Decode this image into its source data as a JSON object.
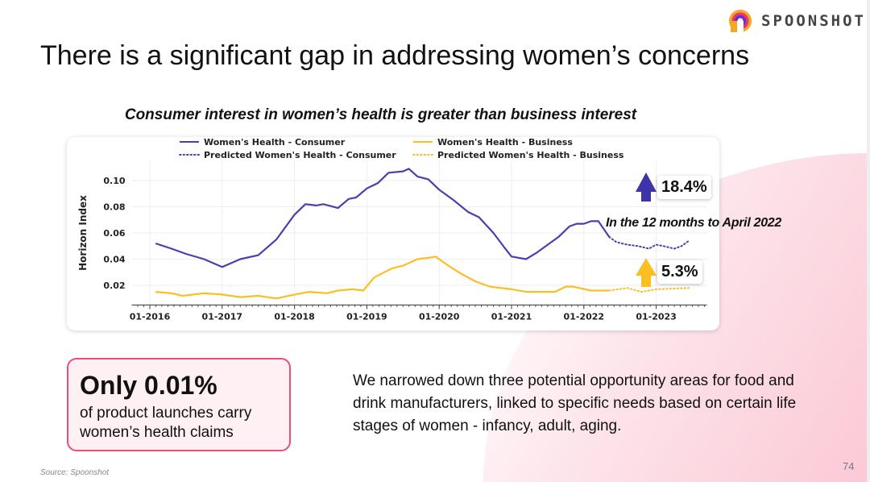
{
  "brand": {
    "name": "SPOONSHOT"
  },
  "title": "There is a significant gap in addressing women’s concerns",
  "subtitle": "Consumer interest in women’s health is greater than business interest",
  "chart_data": {
    "type": "line",
    "title": "Consumer interest in women’s health is greater than business interest",
    "xlabel": "",
    "ylabel": "Horizon Index",
    "xlim": [
      2015.75,
      2023.7
    ],
    "ylim": [
      0.005,
      0.115
    ],
    "xticks": [
      {
        "v": 2016,
        "label": "01-2016"
      },
      {
        "v": 2017,
        "label": "01-2017"
      },
      {
        "v": 2018,
        "label": "01-2018"
      },
      {
        "v": 2019,
        "label": "01-2019"
      },
      {
        "v": 2020,
        "label": "01-2020"
      },
      {
        "v": 2021,
        "label": "01-2021"
      },
      {
        "v": 2022,
        "label": "01-2022"
      },
      {
        "v": 2023,
        "label": "01-2023"
      }
    ],
    "yticks": [
      {
        "v": 0.02,
        "label": "0.02"
      },
      {
        "v": 0.04,
        "label": "0.04"
      },
      {
        "v": 0.06,
        "label": "0.06"
      },
      {
        "v": 0.08,
        "label": "0.08"
      },
      {
        "v": 0.1,
        "label": "0.10"
      }
    ],
    "legend_position": "top",
    "series": [
      {
        "name": "Women's Health - Consumer",
        "color": "#4b3fb0",
        "style": "solid",
        "x": [
          2016.08,
          2016.3,
          2016.5,
          2016.75,
          2017.0,
          2017.25,
          2017.5,
          2017.75,
          2018.0,
          2018.15,
          2018.3,
          2018.4,
          2018.6,
          2018.75,
          2018.85,
          2019.0,
          2019.15,
          2019.3,
          2019.5,
          2019.58,
          2019.7,
          2019.85,
          2020.0,
          2020.2,
          2020.4,
          2020.55,
          2020.75,
          2020.9,
          2021.0,
          2021.2,
          2021.35,
          2021.5,
          2021.65,
          2021.8,
          2021.9,
          2022.0,
          2022.1,
          2022.2,
          2022.35
        ],
        "y": [
          0.052,
          0.048,
          0.044,
          0.04,
          0.034,
          0.04,
          0.043,
          0.055,
          0.074,
          0.082,
          0.081,
          0.082,
          0.079,
          0.086,
          0.087,
          0.094,
          0.098,
          0.106,
          0.107,
          0.109,
          0.103,
          0.101,
          0.093,
          0.085,
          0.076,
          0.072,
          0.06,
          0.049,
          0.042,
          0.04,
          0.045,
          0.051,
          0.057,
          0.065,
          0.067,
          0.067,
          0.069,
          0.069,
          0.057
        ]
      },
      {
        "name": "Predicted Women's Health - Consumer",
        "color": "#4b3fb0",
        "style": "dotted",
        "x": [
          2022.35,
          2022.45,
          2022.6,
          2022.75,
          2022.9,
          2023.0,
          2023.1,
          2023.25,
          2023.35,
          2023.45
        ],
        "y": [
          0.057,
          0.053,
          0.051,
          0.05,
          0.048,
          0.051,
          0.05,
          0.048,
          0.05,
          0.054
        ]
      },
      {
        "name": "Women's Health - Business",
        "color": "#fbbf24",
        "style": "solid",
        "x": [
          2016.08,
          2016.3,
          2016.45,
          2016.75,
          2017.0,
          2017.25,
          2017.5,
          2017.75,
          2018.0,
          2018.2,
          2018.45,
          2018.6,
          2018.8,
          2018.95,
          2019.1,
          2019.35,
          2019.5,
          2019.7,
          2019.85,
          2019.95,
          2020.1,
          2020.3,
          2020.5,
          2020.7,
          2021.0,
          2021.2,
          2021.6,
          2021.75,
          2021.85,
          2022.1,
          2022.35
        ],
        "y": [
          0.015,
          0.014,
          0.012,
          0.014,
          0.013,
          0.011,
          0.012,
          0.01,
          0.013,
          0.015,
          0.014,
          0.016,
          0.017,
          0.016,
          0.026,
          0.033,
          0.035,
          0.04,
          0.041,
          0.042,
          0.036,
          0.029,
          0.023,
          0.019,
          0.017,
          0.015,
          0.015,
          0.019,
          0.019,
          0.016,
          0.016
        ]
      },
      {
        "name": "Predicted Women's Health - Business",
        "color": "#fbbf24",
        "style": "dotted",
        "x": [
          2022.35,
          2022.6,
          2022.8,
          2023.0,
          2023.45
        ],
        "y": [
          0.016,
          0.018,
          0.015,
          0.017,
          0.018
        ]
      }
    ],
    "annotations": {
      "consumer_growth": "18.4%",
      "business_growth": "5.3%",
      "period_note": "In the 12 months to April 2022"
    }
  },
  "stat": {
    "big": "Only 0.01%",
    "sub": "of product launches carry women’s health claims"
  },
  "paragraph": "We narrowed down three potential opportunity areas for food and drink manufacturers, linked to specific needs based on certain life stages of women - infancy, adult, aging.",
  "source": "Source: Spoonshot",
  "page_number": "74"
}
